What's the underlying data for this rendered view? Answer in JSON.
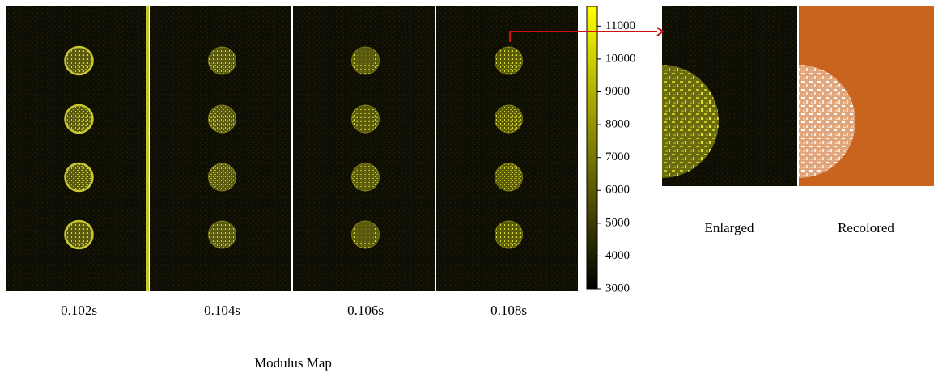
{
  "panels": [
    {
      "label": "0.102s"
    },
    {
      "label": "0.104s"
    },
    {
      "label": "0.106s"
    },
    {
      "label": "0.108s"
    }
  ],
  "caption": "Modulus Map",
  "colorbar": {
    "range": [
      3000,
      11600
    ],
    "ticks": [
      3000,
      4000,
      5000,
      6000,
      7000,
      8000,
      9000,
      10000,
      11000
    ]
  },
  "insets": [
    {
      "label": "Enlarged"
    },
    {
      "label": "Recolored"
    }
  ]
}
